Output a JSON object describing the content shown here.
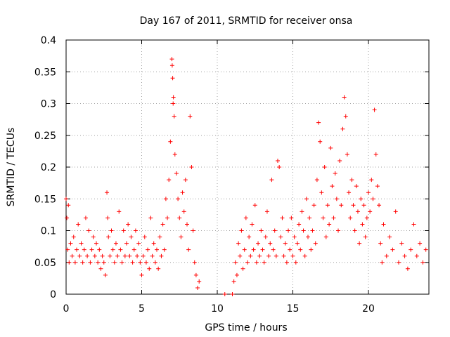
{
  "chart_data": {
    "type": "scatter",
    "title": "Day 167 of 2011, SRMTID for receiver onsa",
    "xlabel": "GPS time / hours",
    "ylabel": "SRMTID / TECUs",
    "xlim": [
      0,
      24
    ],
    "ylim": [
      0,
      0.4
    ],
    "x_ticks": [
      0,
      5,
      10,
      15,
      20
    ],
    "x_tick_labels": [
      "0",
      "5",
      "10",
      "15",
      "20"
    ],
    "y_ticks": [
      0,
      0.05,
      0.1,
      0.15,
      0.2,
      0.25,
      0.3,
      0.35,
      0.4
    ],
    "y_tick_labels": [
      "0",
      "0.05",
      "0.1",
      "0.15",
      "0.2",
      "0.25",
      "0.3",
      "0.35",
      "0.4"
    ],
    "grid": true,
    "marker": "+",
    "color": "#ff0000",
    "series": [
      {
        "name": "SRMTID",
        "x": [
          0.0,
          0.05,
          0.1,
          0.15,
          0.2,
          0.3,
          0.4,
          0.5,
          0.6,
          0.7,
          0.8,
          0.9,
          1.0,
          1.1,
          1.2,
          1.3,
          1.4,
          1.5,
          1.6,
          1.7,
          1.8,
          1.9,
          2.0,
          2.1,
          2.2,
          2.3,
          2.4,
          2.5,
          2.6,
          2.7,
          2.75,
          2.8,
          2.9,
          3.0,
          3.1,
          3.2,
          3.3,
          3.4,
          3.5,
          3.6,
          3.7,
          3.8,
          3.9,
          4.0,
          4.1,
          4.2,
          4.3,
          4.4,
          4.5,
          4.6,
          4.7,
          4.8,
          4.9,
          5.0,
          5.1,
          5.2,
          5.3,
          5.4,
          5.5,
          5.6,
          5.7,
          5.8,
          5.9,
          6.0,
          6.1,
          6.2,
          6.3,
          6.4,
          6.5,
          6.6,
          6.7,
          6.8,
          6.9,
          7.0,
          7.02,
          7.05,
          7.08,
          7.1,
          7.15,
          7.2,
          7.3,
          7.4,
          7.5,
          7.6,
          7.7,
          7.8,
          7.9,
          8.0,
          8.1,
          8.2,
          8.3,
          8.4,
          8.5,
          8.6,
          8.7,
          8.8,
          10.5,
          11.0,
          11.1,
          11.2,
          11.3,
          11.4,
          11.5,
          11.6,
          11.7,
          11.8,
          11.9,
          12.0,
          12.1,
          12.2,
          12.3,
          12.4,
          12.5,
          12.6,
          12.7,
          12.8,
          12.9,
          13.0,
          13.1,
          13.2,
          13.3,
          13.4,
          13.5,
          13.6,
          13.7,
          13.8,
          13.9,
          14.0,
          14.1,
          14.2,
          14.3,
          14.4,
          14.5,
          14.6,
          14.7,
          14.8,
          14.9,
          15.0,
          15.1,
          15.2,
          15.3,
          15.4,
          15.5,
          15.6,
          15.7,
          15.8,
          15.9,
          16.0,
          16.1,
          16.2,
          16.3,
          16.4,
          16.5,
          16.6,
          16.7,
          16.8,
          16.9,
          17.0,
          17.1,
          17.2,
          17.3,
          17.4,
          17.5,
          17.6,
          17.7,
          17.8,
          17.9,
          18.0,
          18.1,
          18.2,
          18.3,
          18.4,
          18.5,
          18.6,
          18.7,
          18.8,
          18.9,
          19.0,
          19.1,
          19.2,
          19.3,
          19.4,
          19.5,
          19.6,
          19.7,
          19.8,
          19.9,
          20.0,
          20.1,
          20.2,
          20.3,
          20.4,
          20.5,
          20.6,
          20.7,
          20.8,
          20.9,
          21.0,
          21.2,
          21.4,
          21.6,
          21.8,
          22.0,
          22.2,
          22.4,
          22.6,
          22.8,
          23.0,
          23.2,
          23.4,
          23.6,
          23.8
        ],
        "y": [
          0.15,
          0.12,
          0.07,
          0.14,
          0.05,
          0.08,
          0.06,
          0.09,
          0.05,
          0.07,
          0.11,
          0.06,
          0.08,
          0.05,
          0.07,
          0.12,
          0.06,
          0.1,
          0.05,
          0.07,
          0.09,
          0.06,
          0.08,
          0.05,
          0.07,
          0.04,
          0.06,
          0.05,
          0.03,
          0.16,
          0.12,
          0.09,
          0.06,
          0.1,
          0.07,
          0.05,
          0.08,
          0.06,
          0.13,
          0.07,
          0.05,
          0.1,
          0.06,
          0.08,
          0.11,
          0.06,
          0.09,
          0.05,
          0.07,
          0.1,
          0.06,
          0.08,
          0.05,
          0.03,
          0.06,
          0.09,
          0.05,
          0.07,
          0.04,
          0.12,
          0.06,
          0.08,
          0.05,
          0.07,
          0.04,
          0.09,
          0.06,
          0.11,
          0.07,
          0.15,
          0.12,
          0.18,
          0.24,
          0.37,
          0.36,
          0.34,
          0.3,
          0.31,
          0.28,
          0.22,
          0.19,
          0.15,
          0.12,
          0.09,
          0.16,
          0.13,
          0.18,
          0.11,
          0.07,
          0.28,
          0.2,
          0.1,
          0.05,
          0.03,
          0.01,
          0.02,
          0.0,
          0.0,
          0.02,
          0.05,
          0.03,
          0.08,
          0.06,
          0.1,
          0.04,
          0.07,
          0.12,
          0.05,
          0.09,
          0.06,
          0.11,
          0.07,
          0.14,
          0.05,
          0.08,
          0.06,
          0.1,
          0.07,
          0.05,
          0.09,
          0.13,
          0.06,
          0.08,
          0.18,
          0.07,
          0.1,
          0.06,
          0.21,
          0.2,
          0.09,
          0.12,
          0.06,
          0.08,
          0.05,
          0.1,
          0.07,
          0.12,
          0.06,
          0.09,
          0.05,
          0.08,
          0.11,
          0.07,
          0.13,
          0.1,
          0.06,
          0.15,
          0.09,
          0.12,
          0.07,
          0.1,
          0.14,
          0.08,
          0.18,
          0.27,
          0.24,
          0.16,
          0.12,
          0.2,
          0.09,
          0.14,
          0.11,
          0.23,
          0.17,
          0.12,
          0.19,
          0.15,
          0.1,
          0.21,
          0.14,
          0.26,
          0.31,
          0.28,
          0.22,
          0.16,
          0.12,
          0.18,
          0.14,
          0.1,
          0.17,
          0.13,
          0.08,
          0.15,
          0.11,
          0.14,
          0.09,
          0.12,
          0.16,
          0.13,
          0.18,
          0.15,
          0.29,
          0.22,
          0.17,
          0.14,
          0.08,
          0.05,
          0.11,
          0.06,
          0.09,
          0.07,
          0.13,
          0.05,
          0.08,
          0.06,
          0.04,
          0.07,
          0.11,
          0.06,
          0.08,
          0.05,
          0.07
        ]
      }
    ]
  }
}
